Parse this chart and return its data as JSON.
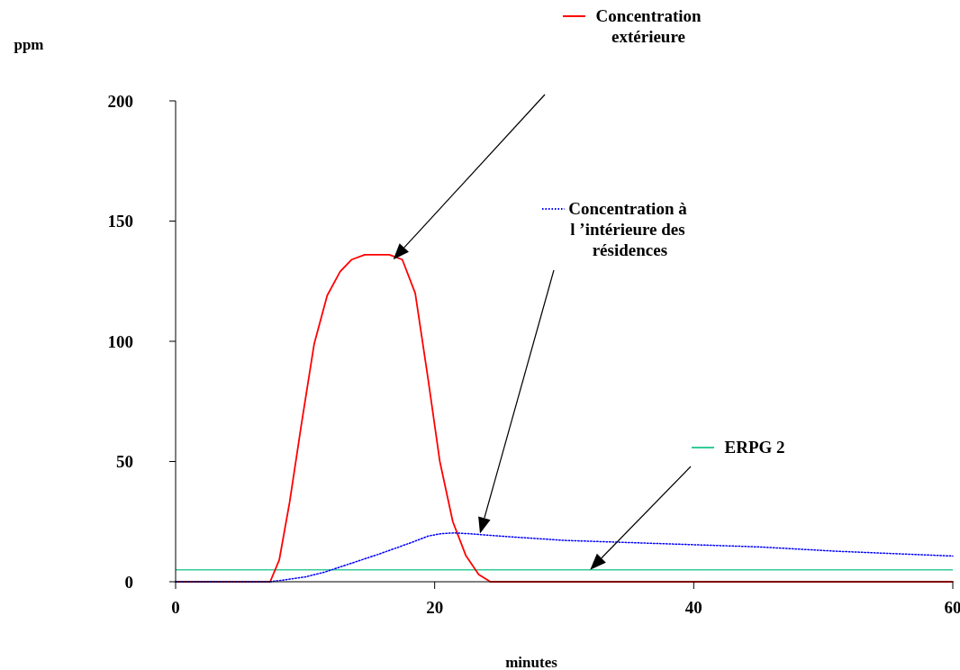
{
  "chart_data": {
    "type": "line",
    "xlabel": "minutes",
    "ylabel": "ppm",
    "xlim": [
      0,
      60
    ],
    "xticks": [
      0,
      20,
      40,
      60
    ],
    "ylim": [
      0,
      200
    ],
    "yticks": [
      0,
      50,
      100,
      150,
      200
    ],
    "grid": false,
    "legend": "top right",
    "marker": "none",
    "series": [
      {
        "name": "Concentration\nextérieure",
        "color": "#ff0000",
        "line_style": "solid",
        "x": [
          0,
          7.3,
          8.0,
          8.8,
          9.7,
          10.7,
          11.7,
          12.7,
          13.6,
          14.6,
          15.6,
          16.5,
          17.5,
          18.5,
          19.5,
          20.4,
          21.4,
          22.4,
          23.4,
          24.3,
          60
        ],
        "values": [
          0,
          0,
          9,
          33,
          65,
          99,
          119,
          129,
          134,
          136,
          136,
          136,
          134,
          120,
          84,
          50,
          25,
          11,
          3,
          0,
          0
        ]
      },
      {
        "name": "Concentration à\nl ’intérieure des\n résidences",
        "color": "#0000ff",
        "line_style": "dotted",
        "x": [
          0,
          7.3,
          8.7,
          10,
          11.5,
          12.9,
          14.3,
          15.7,
          17,
          18.3,
          19.5,
          20.5,
          21.5,
          22.6,
          25,
          30,
          35,
          40,
          45,
          51,
          55,
          60
        ],
        "values": [
          0,
          0,
          1,
          2,
          4,
          6.5,
          9,
          11.5,
          14,
          16.5,
          19,
          20,
          20.3,
          20,
          19,
          17.2,
          16.3,
          15.4,
          14.5,
          12.7,
          11.8,
          10.7
        ]
      }
    ],
    "ref_lines": [
      {
        "axis": "y",
        "value": 5,
        "label": "ERPG 2",
        "color": "#33cc99",
        "line_style": "solid"
      }
    ]
  }
}
